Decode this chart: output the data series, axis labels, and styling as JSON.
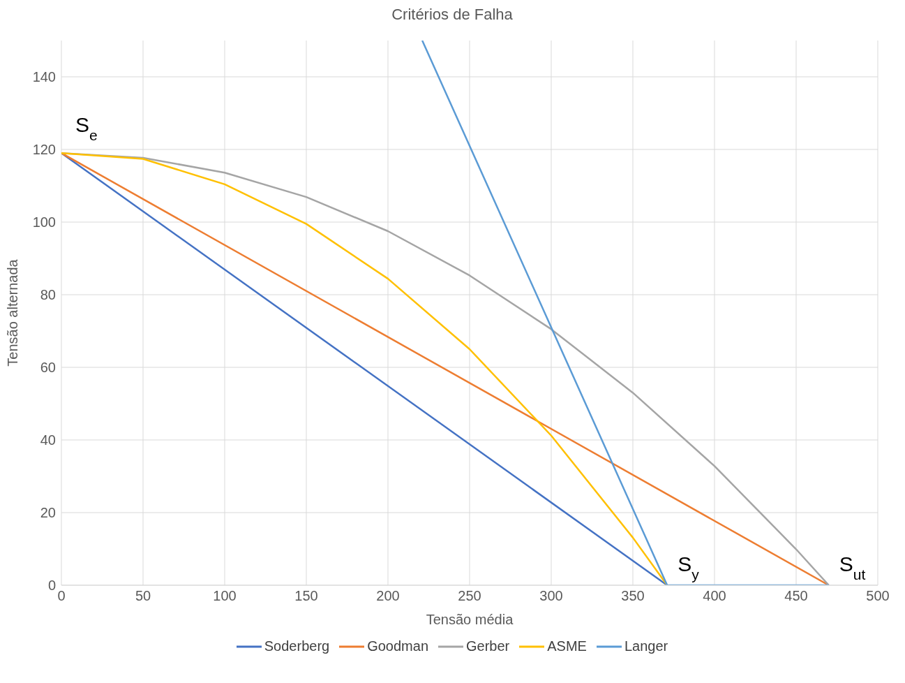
{
  "chart_data": {
    "type": "line",
    "title": "Critérios de Falha",
    "xlabel": "Tensão média",
    "ylabel": "Tensão alternada",
    "xlim": [
      0,
      500
    ],
    "xticks": [
      0,
      50,
      100,
      150,
      200,
      250,
      300,
      350,
      400,
      450,
      500
    ],
    "ylim": [
      0,
      150
    ],
    "yticks": [
      0,
      20,
      40,
      60,
      80,
      100,
      120,
      140
    ],
    "grid": true,
    "legend": "bottom",
    "marker": "none",
    "line_style": "solid",
    "series": [
      {
        "name": "Soderberg",
        "color": "#4472c4",
        "x": [
          0,
          371
        ],
        "values": [
          119,
          0
        ]
      },
      {
        "name": "Goodman",
        "color": "#ed7d31",
        "x": [
          0,
          470
        ],
        "values": [
          119,
          0
        ]
      },
      {
        "name": "Gerber",
        "color": "#a5a5a5",
        "x": [
          0,
          50,
          100,
          150,
          200,
          250,
          300,
          350,
          400,
          450,
          470
        ],
        "values": [
          119,
          117.7,
          113.6,
          106.9,
          97.5,
          85.3,
          70.5,
          53,
          32.8,
          9.9,
          0
        ]
      },
      {
        "name": "ASME",
        "color": "#ffc000",
        "x": [
          0,
          50,
          100,
          150,
          200,
          250,
          300,
          350,
          371
        ],
        "values": [
          119,
          117.4,
          110.4,
          99.5,
          84.4,
          65,
          41.2,
          13.1,
          0
        ]
      },
      {
        "name": "Langer",
        "color": "#5b9bd5",
        "x": [
          221,
          371,
          470
        ],
        "values": [
          150,
          0,
          0
        ]
      }
    ],
    "annotations": [
      {
        "text": "S$_{e}$",
        "x": 0,
        "y": 119
      },
      {
        "text": "S$_{y}$",
        "x": 371,
        "y": 0
      },
      {
        "text": "S$_{ut}$",
        "x": 470,
        "y": 0
      }
    ]
  }
}
